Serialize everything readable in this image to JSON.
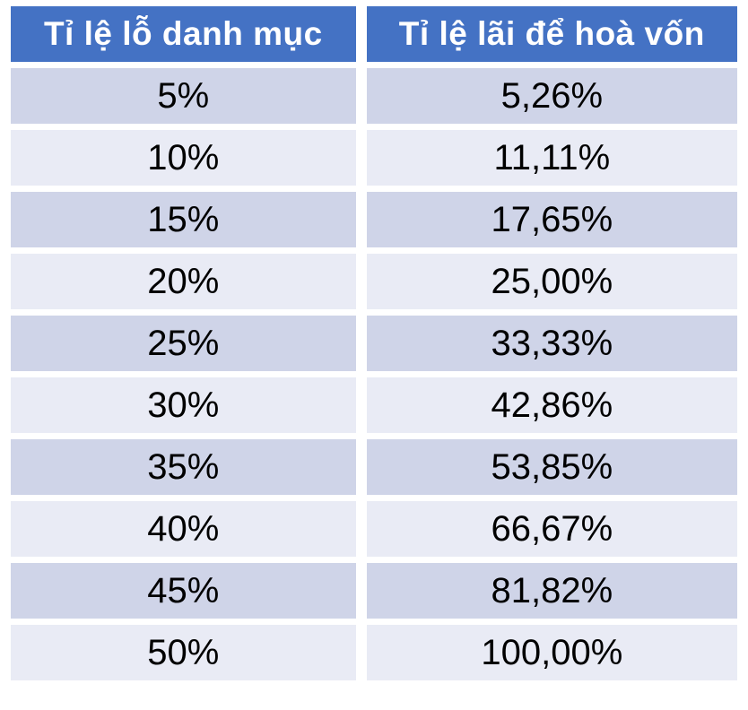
{
  "chart_data": {
    "type": "table",
    "columns": [
      "Tỉ lệ lỗ danh mục",
      "Tỉ lệ lãi để hoà vốn"
    ],
    "rows": [
      [
        "5%",
        "5,26%"
      ],
      [
        "10%",
        "11,11%"
      ],
      [
        "15%",
        "17,65%"
      ],
      [
        "20%",
        "25,00%"
      ],
      [
        "25%",
        "33,33%"
      ],
      [
        "30%",
        "42,86%"
      ],
      [
        "35%",
        "53,85%"
      ],
      [
        "40%",
        "66,67%"
      ],
      [
        "45%",
        "81,82%"
      ],
      [
        "50%",
        "100,00%"
      ]
    ],
    "series": [
      {
        "name": "Tỉ lệ lỗ danh mục (%)",
        "values": [
          5,
          10,
          15,
          20,
          25,
          30,
          35,
          40,
          45,
          50
        ]
      },
      {
        "name": "Tỉ lệ lãi để hoà vốn (%)",
        "values": [
          5.26,
          11.11,
          17.65,
          25.0,
          33.33,
          42.86,
          53.85,
          66.67,
          81.82,
          100.0
        ]
      }
    ],
    "layout": {
      "banded_rows": true,
      "header_position": "top",
      "number_format": "comma-decimal"
    }
  },
  "colors": {
    "header_bg": "#4472C4",
    "header_text": "#FFFFFF",
    "row_band_dark": "#CFD4E8",
    "row_band_light": "#E9EBF5",
    "cell_text": "#000000",
    "page_bg": "#FFFFFF"
  }
}
